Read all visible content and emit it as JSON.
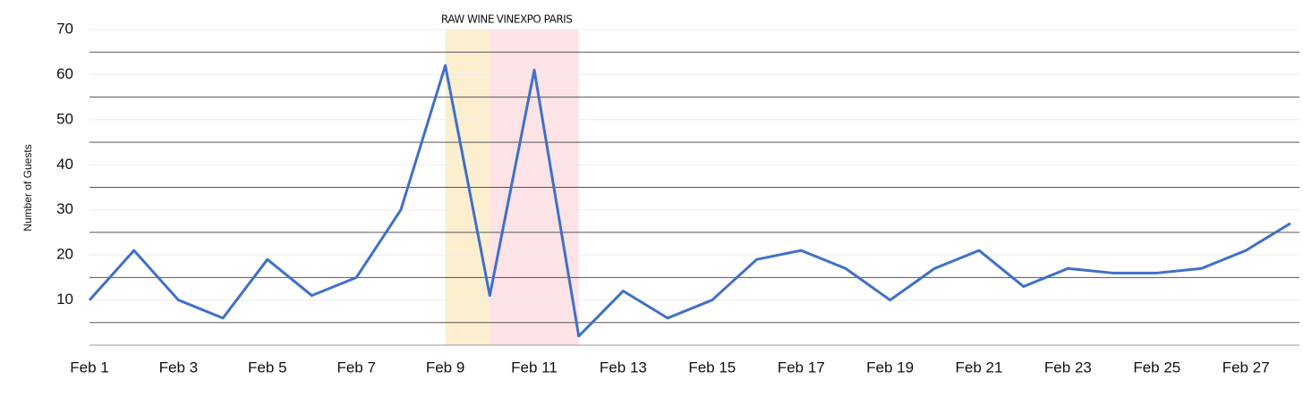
{
  "chart_data": {
    "type": "line",
    "y_label": "Number of Guests",
    "categories": [
      "Feb 1",
      null,
      "Feb 3",
      null,
      "Feb 5",
      null,
      "Feb 7",
      null,
      "Feb 9",
      null,
      "Feb 11",
      null,
      "Feb 13",
      null,
      "Feb 15",
      null,
      "Feb 17",
      null,
      "Feb 19",
      null,
      "Feb 21",
      null,
      "Feb 23",
      null,
      "Feb 25",
      null,
      "Feb 27",
      null
    ],
    "series": [
      {
        "name": "Guests",
        "color": "#3f6fc9",
        "values": [
          10,
          21,
          10,
          6,
          19,
          11,
          15,
          30,
          62,
          11,
          61,
          2,
          12,
          6,
          10,
          19,
          21,
          17,
          10,
          17,
          21,
          13,
          17,
          16,
          16,
          17,
          21,
          27
        ]
      }
    ],
    "ylim": [
      0,
      70
    ],
    "yticks": [
      10,
      20,
      30,
      40,
      50,
      60,
      70
    ],
    "minor_yticks": [
      5,
      15,
      25,
      35,
      45,
      55,
      65
    ],
    "grid": true,
    "bands": [
      {
        "label": "RAW WINE",
        "start": 8,
        "end": 9,
        "color": "#fcefd0"
      },
      {
        "label": "VINEXPO PARIS",
        "start": 9,
        "end": 11,
        "color": "#fde3e6"
      }
    ]
  }
}
